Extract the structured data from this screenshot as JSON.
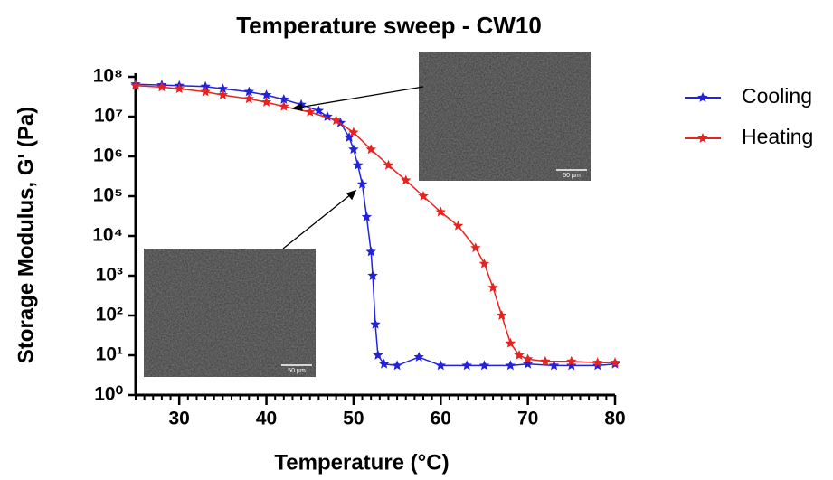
{
  "chart_data": {
    "type": "line",
    "title": "Temperature sweep - CW10",
    "x_label": "Temperature (°C)",
    "y_label": "Storage Modulus, G' (Pa)",
    "log_y": true,
    "legend": "right",
    "xlim": [
      25,
      80
    ],
    "xticks": [
      30,
      40,
      50,
      60,
      70,
      80
    ],
    "ylim": [
      1,
      100000000
    ],
    "yticks": [
      {
        "value": 1,
        "label": "10⁰"
      },
      {
        "value": 10,
        "label": "10¹"
      },
      {
        "value": 100,
        "label": "10²"
      },
      {
        "value": 1000,
        "label": "10³"
      },
      {
        "value": 10000,
        "label": "10⁴"
      },
      {
        "value": 100000,
        "label": "10⁵"
      },
      {
        "value": 1000000,
        "label": "10⁶"
      },
      {
        "value": 10000000,
        "label": "10⁷"
      },
      {
        "value": 100000000,
        "label": "10⁸"
      }
    ],
    "series": [
      {
        "name": "Cooling",
        "color": "#2222dd",
        "x": [
          25,
          28,
          30,
          33,
          35,
          38,
          40,
          42,
          44,
          46,
          47,
          48.5,
          49.5,
          50,
          50.5,
          51,
          51.5,
          52,
          52.2,
          52.5,
          52.8,
          53.5,
          55,
          57.5,
          60,
          63,
          65,
          68,
          70,
          73,
          75,
          78,
          80
        ],
        "values": [
          65000000,
          62000000,
          60000000,
          57000000,
          50000000,
          42000000,
          35000000,
          27000000,
          20000000,
          14000000,
          10000000,
          7000000,
          3000000,
          1500000,
          600000,
          200000,
          30000,
          4000,
          1000,
          60,
          10,
          6,
          5.5,
          9,
          5.5,
          5.5,
          5.5,
          5.5,
          6,
          5.5,
          5.5,
          5.5,
          6
        ]
      },
      {
        "name": "Heating",
        "color": "#e8231f",
        "x": [
          25,
          28,
          30,
          33,
          35,
          38,
          40,
          42,
          45,
          48,
          50,
          52,
          54,
          56,
          58,
          60,
          62,
          64,
          65,
          66,
          67,
          68,
          69,
          70,
          72,
          75,
          78,
          80
        ],
        "values": [
          60000000,
          55000000,
          50000000,
          42000000,
          35000000,
          28000000,
          23000000,
          18000000,
          13000000,
          8000000,
          4000000,
          1500000,
          600000,
          250000,
          100000,
          40000,
          18000,
          5000,
          2000,
          500,
          100,
          20,
          10,
          8,
          7,
          7,
          6.5,
          6.5
        ]
      }
    ],
    "insets": [
      {
        "scale_label": "50 µm"
      },
      {
        "scale_label": "50 µm"
      }
    ]
  }
}
